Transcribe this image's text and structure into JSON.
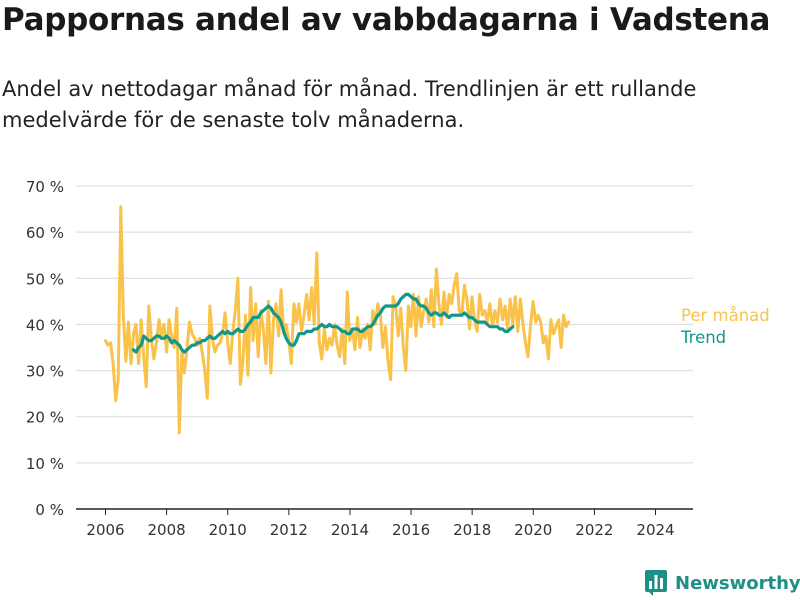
{
  "title": "Pappornas andel av vabbdagarna i Vadstena",
  "subtitle": "Andel av nettodagar månad för månad. Trendlinjen är ett rullande medelvärde för de senaste tolv månaderna.",
  "brand": "Newsworthy",
  "colors": {
    "monthly": "#f9c34b",
    "trend": "#14978b",
    "grid": "#d9d9d9",
    "axis": "#222222",
    "brand": "#1e8f87"
  },
  "chart_data": {
    "type": "line",
    "xlim": [
      2006,
      2024.4
    ],
    "ylim": [
      0,
      70
    ],
    "x_ticks": [
      2006,
      2008,
      2010,
      2012,
      2014,
      2016,
      2018,
      2020,
      2022,
      2024
    ],
    "x_tick_labels": [
      "2006",
      "2008",
      "2010",
      "2012",
      "2014",
      "2016",
      "2018",
      "2020",
      "2022",
      "2024"
    ],
    "y_ticks": [
      0,
      10,
      20,
      30,
      40,
      50,
      60,
      70
    ],
    "y_tick_labels": [
      "0 %",
      "10 %",
      "20 %",
      "30 %",
      "40 %",
      "50 %",
      "60 %",
      "70 %"
    ],
    "grid": "horizontal",
    "legend": "direct labels at line ends",
    "series": [
      {
        "name": "Per månad",
        "color": "#f9c34b",
        "x_start": 2006.0,
        "step": 0.0833,
        "values": [
          36.5,
          35.5,
          36.0,
          31.5,
          23.5,
          28.0,
          65.5,
          42.0,
          32.0,
          40.5,
          31.5,
          38.0,
          40.0,
          31.5,
          41.0,
          33.0,
          26.5,
          44.0,
          37.0,
          32.5,
          36.0,
          41.0,
          37.5,
          40.0,
          34.0,
          41.0,
          37.5,
          35.0,
          43.5,
          16.5,
          34.5,
          29.5,
          34.5,
          40.5,
          38.0,
          37.0,
          35.5,
          37.0,
          34.0,
          30.0,
          24.0,
          44.0,
          37.0,
          34.0,
          35.5,
          36.0,
          38.0,
          42.5,
          36.0,
          31.5,
          38.5,
          43.0,
          50.0,
          27.0,
          32.0,
          42.0,
          29.0,
          48.0,
          36.5,
          44.5,
          33.0,
          43.0,
          39.0,
          31.5,
          45.0,
          29.5,
          41.0,
          44.5,
          37.5,
          47.5,
          38.0,
          40.0,
          36.5,
          31.5,
          44.5,
          40.5,
          44.5,
          38.5,
          42.0,
          46.5,
          41.0,
          48.0,
          40.0,
          55.5,
          36.0,
          32.5,
          39.0,
          34.5,
          37.0,
          35.5,
          40.0,
          35.5,
          33.0,
          39.0,
          31.5,
          47.0,
          36.5,
          39.0,
          34.5,
          41.5,
          35.0,
          39.0,
          37.0,
          40.0,
          34.5,
          43.0,
          40.0,
          44.5,
          42.0,
          35.0,
          39.5,
          32.0,
          28.0,
          46.0,
          44.0,
          37.5,
          43.5,
          35.0,
          30.0,
          44.0,
          39.5,
          46.5,
          37.5,
          46.0,
          39.5,
          43.0,
          45.5,
          40.5,
          47.5,
          39.5,
          52.0,
          44.5,
          40.0,
          47.0,
          41.5,
          46.5,
          44.5,
          48.5,
          51.0,
          43.0,
          42.0,
          48.5,
          45.5,
          39.0,
          46.0,
          41.0,
          38.5,
          46.5,
          42.0,
          43.0,
          40.5,
          44.5,
          39.5,
          43.0,
          40.5,
          45.5,
          41.0,
          44.0,
          39.0,
          45.5,
          40.0,
          46.0,
          38.5,
          45.5,
          40.0,
          36.0,
          33.0,
          40.0,
          45.0,
          40.5,
          42.0,
          40.5,
          36.0,
          37.5,
          32.5,
          41.0,
          38.0,
          39.5,
          41.0,
          35.0,
          42.0,
          39.5,
          40.5
        ]
      },
      {
        "name": "Trend",
        "color": "#14978b",
        "x_start": 2006.917,
        "step": 0.0833,
        "values": [
          34.5,
          34.0,
          35.0,
          35.5,
          37.5,
          37.0,
          36.5,
          36.5,
          37.0,
          37.5,
          37.5,
          37.0,
          37.0,
          37.5,
          37.0,
          36.0,
          36.5,
          36.0,
          35.5,
          34.5,
          34.0,
          34.5,
          35.0,
          35.5,
          35.5,
          36.0,
          36.0,
          36.5,
          36.5,
          37.0,
          37.5,
          37.0,
          37.0,
          37.5,
          38.0,
          38.5,
          38.0,
          38.5,
          38.0,
          38.0,
          38.5,
          39.0,
          38.5,
          38.5,
          39.0,
          40.0,
          40.5,
          41.5,
          41.5,
          41.5,
          42.5,
          43.0,
          43.5,
          44.0,
          43.5,
          42.5,
          42.0,
          41.5,
          40.5,
          38.5,
          37.0,
          36.0,
          35.5,
          35.5,
          36.5,
          38.0,
          38.0,
          38.0,
          38.5,
          38.5,
          38.5,
          39.0,
          39.0,
          39.5,
          40.0,
          39.5,
          39.5,
          40.0,
          39.5,
          39.5,
          39.5,
          39.0,
          38.5,
          38.5,
          38.0,
          38.0,
          39.0,
          39.0,
          39.0,
          38.5,
          38.5,
          39.0,
          39.5,
          39.5,
          40.0,
          41.0,
          42.0,
          42.5,
          43.5,
          44.0,
          44.0,
          44.0,
          44.0,
          44.0,
          44.5,
          45.5,
          46.0,
          46.5,
          46.5,
          46.0,
          45.5,
          45.5,
          44.5,
          44.0,
          44.0,
          43.5,
          42.5,
          42.0,
          42.5,
          42.5,
          42.0,
          42.0,
          42.5,
          42.0,
          41.5,
          42.0,
          42.0,
          42.0,
          42.0,
          42.0,
          42.5,
          42.0,
          41.5,
          41.5,
          41.0,
          40.5,
          40.5,
          40.5,
          40.5,
          40.0,
          39.5,
          39.5,
          39.5,
          39.5,
          39.0,
          39.0,
          38.5,
          38.5,
          39.0,
          39.5
        ]
      }
    ]
  }
}
